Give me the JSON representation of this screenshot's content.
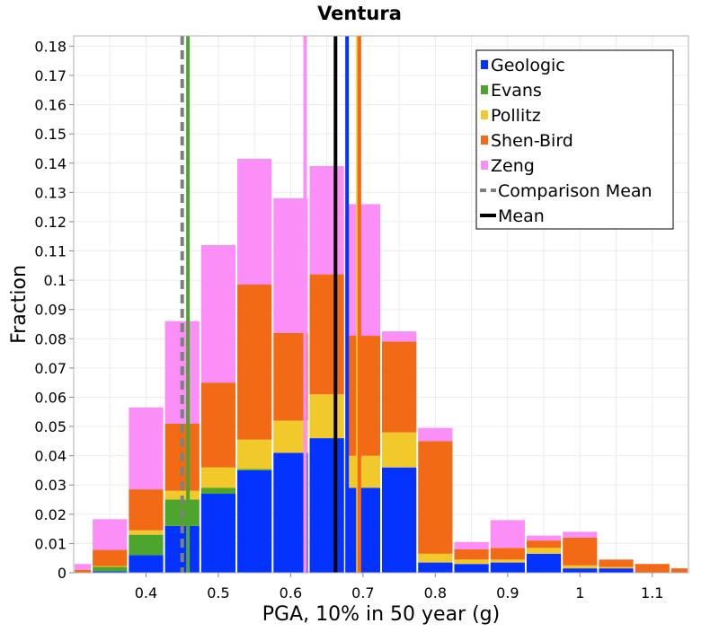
{
  "chart_data": {
    "type": "bar",
    "stacked": true,
    "title": "Ventura",
    "xlabel": "PGA, 10% in 50 year (g)",
    "ylabel": "Fraction",
    "xlim": [
      0.3,
      1.15
    ],
    "ylim": [
      0,
      0.1835
    ],
    "grid": true,
    "legend_position": "top-right",
    "bin_width": 0.05,
    "x_ticks": [
      0.4,
      0.5,
      0.6,
      0.7,
      0.8,
      0.9,
      1,
      1.1
    ],
    "x_tick_labels": [
      "0.4",
      "0.5",
      "0.6",
      "0.7",
      "0.8",
      "0.9",
      "1",
      "1.1"
    ],
    "y_ticks": [
      0,
      0.01,
      0.02,
      0.03,
      0.04,
      0.05,
      0.06,
      0.07,
      0.08,
      0.09,
      0.1,
      0.11,
      0.12,
      0.13,
      0.14,
      0.15,
      0.16,
      0.17,
      0.18
    ],
    "y_tick_labels": [
      "0",
      "0.01",
      "0.02",
      "0.03",
      "0.04",
      "0.05",
      "0.06",
      "0.07",
      "0.08",
      "0.09",
      "0.1",
      "0.11",
      "0.12",
      "0.13",
      "0.14",
      "0.15",
      "0.16",
      "0.17",
      "0.18"
    ],
    "bin_centers": [
      0.3,
      0.35,
      0.4,
      0.45,
      0.5,
      0.55,
      0.6,
      0.65,
      0.7,
      0.75,
      0.8,
      0.85,
      0.9,
      0.95,
      1.0,
      1.05,
      1.1,
      1.15
    ],
    "series": [
      {
        "name": "Geologic",
        "color": "#0433ff",
        "values": [
          0,
          0.0005,
          0.006,
          0.016,
          0.027,
          0.035,
          0.041,
          0.046,
          0.029,
          0.036,
          0.0035,
          0.003,
          0.0035,
          0.0065,
          0.0015,
          0.0015,
          0,
          0
        ]
      },
      {
        "name": "Evans",
        "color": "#4ea52e",
        "values": [
          0,
          0.0015,
          0.007,
          0.009,
          0.002,
          0.0005,
          0,
          0,
          0,
          0,
          0,
          0,
          0,
          0,
          0,
          0,
          0,
          0
        ]
      },
      {
        "name": "Pollitz",
        "color": "#f1c92a",
        "values": [
          0,
          0.0003,
          0.0015,
          0.003,
          0.007,
          0.01,
          0.011,
          0.015,
          0.011,
          0.012,
          0.003,
          0.0015,
          0.001,
          0.002,
          0.001,
          0.0005,
          0,
          0
        ]
      },
      {
        "name": "Shen-Bird",
        "color": "#f26a16",
        "values": [
          0.001,
          0.0055,
          0.014,
          0.023,
          0.029,
          0.053,
          0.03,
          0.041,
          0.041,
          0.031,
          0.0385,
          0.0035,
          0.004,
          0.0025,
          0.0095,
          0.0025,
          0.003,
          0.0015
        ]
      },
      {
        "name": "Zeng",
        "color": "#fb8ef7",
        "values": [
          0.002,
          0.0105,
          0.028,
          0.035,
          0.047,
          0.043,
          0.046,
          0.037,
          0.045,
          0.0035,
          0.0045,
          0.0025,
          0.0095,
          0.0017,
          0.002,
          0,
          0,
          0
        ]
      }
    ],
    "vertical_lines": [
      {
        "series": "Comparison Mean",
        "x": 0.45,
        "color": "#7f7f7f",
        "dashed": true
      },
      {
        "series": "Evans",
        "x": 0.458,
        "color": "#4ea52e",
        "dashed": false
      },
      {
        "series": "Zeng",
        "x": 0.62,
        "color": "#fb8ef7",
        "dashed": false
      },
      {
        "series": "Mean",
        "x": 0.662,
        "color": "#000000",
        "dashed": false
      },
      {
        "series": "Geologic",
        "x": 0.678,
        "color": "#0433ff",
        "dashed": false
      },
      {
        "series": "Pollitz",
        "x": 0.693,
        "color": "#f1c92a",
        "dashed": false
      },
      {
        "series": "Shen-Bird",
        "x": 0.695,
        "color": "#f26a16",
        "dashed": false
      }
    ],
    "legend": [
      {
        "label": "Geologic",
        "color": "#0433ff",
        "style": "box"
      },
      {
        "label": "Evans",
        "color": "#4ea52e",
        "style": "box"
      },
      {
        "label": "Pollitz",
        "color": "#f1c92a",
        "style": "box"
      },
      {
        "label": "Shen-Bird",
        "color": "#f26a16",
        "style": "box"
      },
      {
        "label": "Zeng",
        "color": "#fb8ef7",
        "style": "box"
      },
      {
        "label": "Comparison Mean",
        "color": "#7f7f7f",
        "style": "dashed"
      },
      {
        "label": "Mean",
        "color": "#000000",
        "style": "line"
      }
    ]
  }
}
